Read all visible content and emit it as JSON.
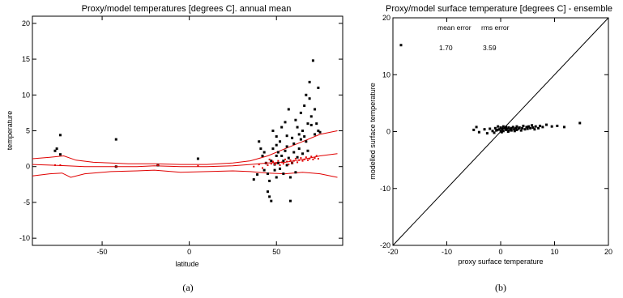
{
  "figure": {
    "caption_left": "(a)",
    "caption_right": "(b)",
    "line_color": "#e00000",
    "point_color": "#000000"
  },
  "chart_data": [
    {
      "type": "scatter",
      "title": "Proxy/model temperatures [degrees C]. annual mean",
      "xlabel": "latitude",
      "ylabel": "temperature",
      "xlim": [
        -90,
        88
      ],
      "ylim": [
        -11,
        21
      ],
      "xticks": [
        "-50",
        "0",
        "50"
      ],
      "xtick_values": [
        -50,
        0,
        50
      ],
      "yticks": [
        "-10",
        "-5",
        "0",
        "5",
        "10",
        "15",
        "20"
      ],
      "ytick_values": [
        -10,
        -5,
        0,
        5,
        10,
        15,
        20
      ],
      "grid": false,
      "series": [
        {
          "kind": "points",
          "color": "#000000",
          "points": [
            [
              -77,
              2.2
            ],
            [
              -76,
              2.5
            ],
            [
              -74,
              4.4
            ],
            [
              -74,
              1.7
            ],
            [
              -42,
              3.8
            ],
            [
              -42,
              0
            ],
            [
              -18,
              0.2
            ],
            [
              5,
              1.1
            ],
            [
              40,
              3.5
            ],
            [
              41,
              2.5
            ],
            [
              42,
              1.5
            ],
            [
              43,
              2
            ],
            [
              43,
              -0.5
            ],
            [
              44,
              0.5
            ],
            [
              45,
              -1
            ],
            [
              45,
              -3.5
            ],
            [
              46,
              -2
            ],
            [
              46,
              -4.2
            ],
            [
              47,
              0.8
            ],
            [
              47,
              -4.8
            ],
            [
              48,
              5
            ],
            [
              48,
              2.5
            ],
            [
              49,
              -0.5
            ],
            [
              49,
              0.3
            ],
            [
              50,
              3
            ],
            [
              50,
              1.5
            ],
            [
              50,
              4.2
            ],
            [
              50,
              -1.5
            ],
            [
              51,
              0.5
            ],
            [
              51,
              2
            ],
            [
              52,
              -0.3
            ],
            [
              52,
              3.5
            ],
            [
              53,
              1.5
            ],
            [
              53,
              5.5
            ],
            [
              54,
              0.8
            ],
            [
              54,
              -1
            ],
            [
              55,
              2.2
            ],
            [
              55,
              6.2
            ],
            [
              56,
              4.3
            ],
            [
              56,
              2.8
            ],
            [
              56,
              0.2
            ],
            [
              57,
              8
            ],
            [
              57,
              1.2
            ],
            [
              58,
              -1.5
            ],
            [
              58,
              -4.8
            ],
            [
              59,
              4
            ],
            [
              59,
              0.5
            ],
            [
              60,
              3.2
            ],
            [
              60,
              2
            ],
            [
              61,
              6.5
            ],
            [
              61,
              -0.8
            ],
            [
              62,
              5.5
            ],
            [
              62,
              1.3
            ],
            [
              63,
              4.5
            ],
            [
              63,
              2.5
            ],
            [
              64,
              7.5
            ],
            [
              64,
              3.8
            ],
            [
              65,
              5
            ],
            [
              65,
              1.8
            ],
            [
              66,
              8.5
            ],
            [
              66,
              4.2
            ],
            [
              67,
              10
            ],
            [
              67,
              3.5
            ],
            [
              68,
              6
            ],
            [
              68,
              2.2
            ],
            [
              69,
              9.5
            ],
            [
              69,
              11.8
            ],
            [
              70,
              5.8
            ],
            [
              70,
              7
            ],
            [
              71,
              14.8
            ],
            [
              72,
              8
            ],
            [
              72,
              4.5
            ],
            [
              73,
              6
            ],
            [
              74,
              11
            ],
            [
              74,
              5
            ],
            [
              75,
              4.8
            ],
            [
              37,
              -1.8
            ],
            [
              39,
              -1.1
            ]
          ]
        },
        {
          "kind": "model-points",
          "color": "#e00000",
          "points": [
            [
              -77,
              0.2
            ],
            [
              -74,
              0.2
            ],
            [
              -42,
              0
            ],
            [
              -18,
              0.2
            ],
            [
              5,
              0.1
            ],
            [
              37,
              0
            ],
            [
              40,
              0.3
            ],
            [
              42,
              -0.2
            ],
            [
              44,
              0.5
            ],
            [
              45,
              0.2
            ],
            [
              46,
              1
            ],
            [
              47,
              0.4
            ],
            [
              48,
              0.7
            ],
            [
              49,
              0.3
            ],
            [
              50,
              0.5
            ],
            [
              51,
              0.8
            ],
            [
              52,
              0.2
            ],
            [
              53,
              0.6
            ],
            [
              54,
              0.4
            ],
            [
              55,
              1
            ],
            [
              56,
              0.7
            ],
            [
              57,
              0.3
            ],
            [
              58,
              0.9
            ],
            [
              59,
              0.5
            ],
            [
              60,
              0.8
            ],
            [
              61,
              1.1
            ],
            [
              62,
              0.6
            ],
            [
              63,
              0.9
            ],
            [
              64,
              1.2
            ],
            [
              65,
              0.8
            ],
            [
              66,
              1
            ],
            [
              67,
              1.3
            ],
            [
              68,
              0.9
            ],
            [
              69,
              1.1
            ],
            [
              70,
              1.4
            ],
            [
              71,
              1
            ],
            [
              72,
              1.2
            ],
            [
              73,
              1.5
            ],
            [
              74,
              1.1
            ]
          ]
        },
        {
          "kind": "line",
          "color": "#e00000",
          "x": [
            -90,
            -80,
            -72,
            -65,
            -55,
            -45,
            -35,
            -20,
            -5,
            10,
            25,
            35,
            45,
            55,
            65,
            75,
            85
          ],
          "y": [
            1.1,
            1.3,
            1.5,
            0.9,
            0.6,
            0.5,
            0.4,
            0.4,
            0.3,
            0.3,
            0.5,
            0.8,
            1.5,
            2.5,
            3.5,
            4.5,
            5
          ]
        },
        {
          "kind": "line",
          "color": "#e00000",
          "x": [
            -90,
            -80,
            -70,
            -60,
            -50,
            -40,
            -30,
            -20,
            -5,
            10,
            25,
            35,
            45,
            55,
            65,
            75,
            85
          ],
          "y": [
            0.3,
            0.2,
            0.1,
            0,
            0,
            0,
            0,
            0.1,
            0,
            0,
            0.1,
            0.3,
            0.5,
            0.6,
            1,
            1.5,
            1.8
          ]
        },
        {
          "kind": "line",
          "color": "#e00000",
          "x": [
            -90,
            -80,
            -73,
            -68,
            -60,
            -45,
            -30,
            -20,
            -5,
            10,
            25,
            35,
            45,
            55,
            65,
            75,
            85
          ],
          "y": [
            -1.3,
            -1.0,
            -0.9,
            -1.5,
            -1.0,
            -0.7,
            -0.6,
            -0.5,
            -0.8,
            -0.7,
            -0.6,
            -0.7,
            -0.9,
            -1.0,
            -0.8,
            -1.0,
            -1.5
          ]
        }
      ]
    },
    {
      "type": "scatter",
      "title": "Proxy/model surface temperature [degrees C] - ensemble",
      "xlabel": "proxy surface temperature",
      "ylabel": "modelled surface temperature",
      "xlim": [
        -20,
        20
      ],
      "ylim": [
        -20,
        20
      ],
      "xticks": [
        "-20",
        "-10",
        "0",
        "10",
        "20"
      ],
      "xtick_values": [
        -20,
        -10,
        0,
        10,
        20
      ],
      "yticks": [
        "-20",
        "-10",
        "0",
        "10",
        "20"
      ],
      "ytick_values": [
        -20,
        -10,
        0,
        10,
        20
      ],
      "grid": false,
      "annotations": {
        "mean_error_label": "mean error",
        "mean_error_value": "1.70",
        "rms_error_label": "rms error",
        "rms_error_value": "3.59"
      },
      "series": [
        {
          "kind": "points",
          "color": "#000000",
          "points": [
            [
              -18.5,
              15.2
            ],
            [
              -5,
              0.3
            ],
            [
              -4.5,
              0.8
            ],
            [
              -4,
              -0.1
            ],
            [
              -3,
              0.4
            ],
            [
              -2.5,
              -0.3
            ],
            [
              -2,
              0.5
            ],
            [
              -1.5,
              0.1
            ],
            [
              -1,
              0.6
            ],
            [
              -0.8,
              0.2
            ],
            [
              -0.5,
              0.9
            ],
            [
              -0.3,
              0.4
            ],
            [
              0,
              0.7
            ],
            [
              0,
              0.2
            ],
            [
              0.3,
              0.5
            ],
            [
              0.5,
              0.9
            ],
            [
              0.5,
              0.1
            ],
            [
              0.8,
              0.6
            ],
            [
              1,
              0.3
            ],
            [
              1,
              0.8
            ],
            [
              1.2,
              0.5
            ],
            [
              1.5,
              0.2
            ],
            [
              1.5,
              0.7
            ],
            [
              1.8,
              0.4
            ],
            [
              2,
              0.6
            ],
            [
              2,
              0.2
            ],
            [
              2.3,
              0.8
            ],
            [
              2.5,
              0.4
            ],
            [
              2.8,
              0.6
            ],
            [
              3,
              0.3
            ],
            [
              3,
              0.9
            ],
            [
              3.3,
              0.5
            ],
            [
              3.5,
              0.7
            ],
            [
              3.8,
              0.2
            ],
            [
              4,
              0.6
            ],
            [
              4.2,
              1
            ],
            [
              4.5,
              0.4
            ],
            [
              4.8,
              0.8
            ],
            [
              5,
              0.5
            ],
            [
              5.2,
              0.9
            ],
            [
              5.5,
              0.6
            ],
            [
              5.8,
              1.1
            ],
            [
              6,
              0.7
            ],
            [
              6.3,
              0.4
            ],
            [
              6.5,
              0.9
            ],
            [
              7,
              0.6
            ],
            [
              7.3,
              1
            ],
            [
              7.8,
              0.8
            ],
            [
              8.5,
              1.2
            ],
            [
              9.5,
              0.9
            ],
            [
              10.5,
              1
            ],
            [
              11.8,
              0.8
            ],
            [
              14.7,
              1.5
            ],
            [
              -1.2,
              -0.2
            ],
            [
              0.2,
              -0.1
            ],
            [
              1.4,
              0.0
            ],
            [
              2.6,
              0.1
            ],
            [
              -0.6,
              0.3
            ]
          ]
        },
        {
          "kind": "line",
          "color": "#000000",
          "x": [
            -20,
            20
          ],
          "y": [
            -20,
            20
          ]
        }
      ]
    }
  ]
}
